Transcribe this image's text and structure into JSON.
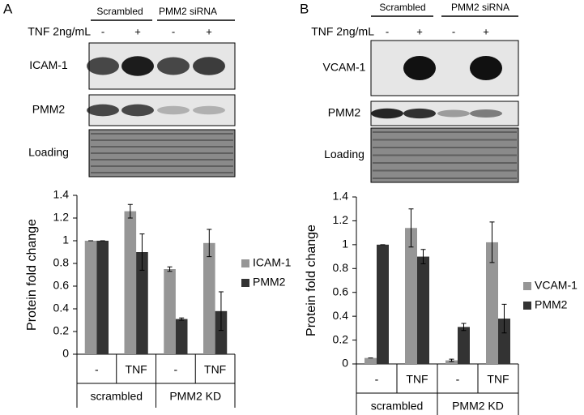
{
  "blots": [
    {
      "panel": "A",
      "groups": [
        "Scrambled",
        "PMM2 siRNA"
      ],
      "treatment_label": "TNF 2ng/mL",
      "treatments": [
        "-",
        "+",
        "-",
        "+"
      ],
      "rows": [
        "ICAM-1",
        "PMM2",
        "Loading"
      ]
    },
    {
      "panel": "B",
      "groups": [
        "Scrambled",
        "PMM2 siRNA"
      ],
      "treatment_label": "TNF 2ng/mL",
      "treatments": [
        "-",
        "+",
        "-",
        "+"
      ],
      "rows": [
        "VCAM-1",
        "PMM2",
        "Loading"
      ]
    }
  ],
  "chart_data": [
    {
      "type": "bar",
      "ylabel": "Protein  fold change",
      "categories": [
        "-",
        "TNF",
        "-",
        "TNF"
      ],
      "groups": [
        "scrambled",
        "PMM2 KD"
      ],
      "series": [
        {
          "name": "ICAM-1",
          "color": "#969696",
          "values": [
            1,
            1.26,
            0.75,
            0.98
          ],
          "errors": [
            0,
            0.06,
            0.02,
            0.12
          ]
        },
        {
          "name": "PMM2",
          "color": "#333333",
          "values": [
            1,
            0.9,
            0.31,
            0.38
          ],
          "errors": [
            0,
            0.16,
            0.01,
            0.17
          ]
        }
      ],
      "ylim": [
        0,
        1.4
      ],
      "yticks": [
        0,
        0.2,
        0.4,
        0.6,
        0.8,
        1,
        1.2,
        1.4
      ]
    },
    {
      "type": "bar",
      "ylabel": "Protein  fold change",
      "categories": [
        "-",
        "TNF",
        "-",
        "TNF"
      ],
      "groups": [
        "scrambled",
        "PMM2 KD"
      ],
      "series": [
        {
          "name": "VCAM-1",
          "color": "#969696",
          "values": [
            0.05,
            1.14,
            0.03,
            1.02
          ],
          "errors": [
            0,
            0.16,
            0.01,
            0.17
          ]
        },
        {
          "name": "PMM2",
          "color": "#333333",
          "values": [
            1,
            0.9,
            0.31,
            0.38
          ],
          "errors": [
            0,
            0.06,
            0.03,
            0.12
          ]
        }
      ],
      "ylim": [
        0,
        1.4
      ],
      "yticks": [
        0,
        0.2,
        0.4,
        0.6,
        0.8,
        1,
        1.2,
        1.4
      ]
    }
  ]
}
